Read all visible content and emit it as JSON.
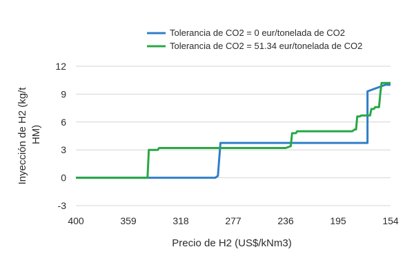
{
  "chart_data": {
    "type": "line",
    "xlabel": "Precio de H2 (US$/kNm3)",
    "ylabel_lines": [
      "Inyección de H2 (kg/t",
      "HM)"
    ],
    "x_ticks": [
      "400",
      "359",
      "318",
      "277",
      "236",
      "195",
      "154"
    ],
    "y_ticks": [
      "12",
      "9",
      "6",
      "3",
      "0",
      "-3"
    ],
    "xlim": [
      400,
      154
    ],
    "ylim": [
      -3,
      12
    ],
    "grid": "horizontal",
    "legend_position": "top-right",
    "series": [
      {
        "name": "Tolerancia de CO2 = 0 eur/tonelada de CO2",
        "color": "#2f7fc8",
        "x": [
          400,
          291,
          289,
          289,
          287,
          287,
          236,
          172,
          172,
          158,
          154
        ],
        "y": [
          0,
          0,
          0.2,
          0.2,
          3.75,
          3.75,
          3.75,
          3.75,
          9.3,
          10.0,
          10.0
        ]
      },
      {
        "name": "Tolerancia de CO2 = 51.34 eur/tonelada de CO2",
        "color": "#27a844",
        "x": [
          400,
          344,
          343,
          336,
          335,
          236,
          232,
          231,
          228,
          227,
          216,
          184,
          182,
          181,
          180,
          178,
          177,
          170,
          169,
          167,
          166,
          163,
          162,
          161,
          154
        ],
        "y": [
          0,
          0,
          3.0,
          3.0,
          3.2,
          3.2,
          3.4,
          4.8,
          4.8,
          5.0,
          5.0,
          5.0,
          5.2,
          5.2,
          6.6,
          6.6,
          6.7,
          6.7,
          7.4,
          7.4,
          7.6,
          7.6,
          9.1,
          10.2,
          10.2
        ]
      }
    ]
  }
}
